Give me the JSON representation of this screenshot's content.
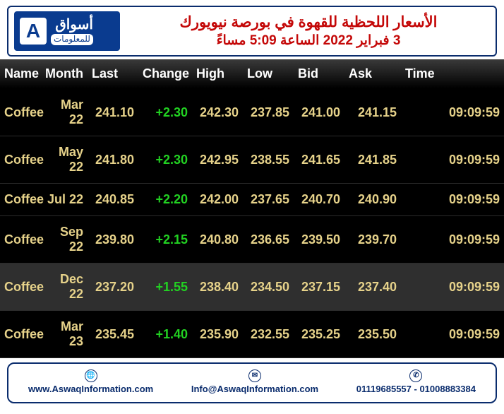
{
  "header": {
    "logo_letter": "A",
    "logo_top": "أسواق",
    "logo_bottom": "للمعلومات",
    "title_line1": "الأسعار اللحظية للقهوة في بورصة نيويورك",
    "title_line2": "3 فبراير 2022 الساعة 5:09 مساءً"
  },
  "table": {
    "headers": [
      "Name",
      "Month",
      "Last",
      "Change",
      "High",
      "Low",
      "Bid",
      "Ask",
      "Time"
    ],
    "rows": [
      {
        "name": "Coffee",
        "month": "Mar 22",
        "last": "241.10",
        "change": "+2.30",
        "high": "242.30",
        "low": "237.85",
        "bid": "241.00",
        "ask": "241.15",
        "time": "09:09:59",
        "alt": false
      },
      {
        "name": "Coffee",
        "month": "May 22",
        "last": "241.80",
        "change": "+2.30",
        "high": "242.95",
        "low": "238.55",
        "bid": "241.65",
        "ask": "241.85",
        "time": "09:09:59",
        "alt": false
      },
      {
        "name": "Coffee",
        "month": "Jul 22",
        "last": "240.85",
        "change": "+2.20",
        "high": "242.00",
        "low": "237.65",
        "bid": "240.70",
        "ask": "240.90",
        "time": "09:09:59",
        "alt": false
      },
      {
        "name": "Coffee",
        "month": "Sep 22",
        "last": "239.80",
        "change": "+2.15",
        "high": "240.80",
        "low": "236.65",
        "bid": "239.50",
        "ask": "239.70",
        "time": "09:09:59",
        "alt": false
      },
      {
        "name": "Coffee",
        "month": "Dec 22",
        "last": "237.20",
        "change": "+1.55",
        "high": "238.40",
        "low": "234.50",
        "bid": "237.15",
        "ask": "237.40",
        "time": "09:09:59",
        "alt": true
      },
      {
        "name": "Coffee",
        "month": "Mar 23",
        "last": "235.45",
        "change": "+1.40",
        "high": "235.90",
        "low": "232.55",
        "bid": "235.25",
        "ask": "235.50",
        "time": "09:09:59",
        "alt": false
      }
    ]
  },
  "footer": {
    "website": "www.AswaqInformation.com",
    "email": "Info@AswaqInformation.com",
    "phones": "01119685557 - 01008883384"
  },
  "colors": {
    "header_border": "#0a2c6d",
    "logo_bg": "#0a3b8f",
    "title_color": "#c40808",
    "cell_text": "#e6d28a",
    "positive": "#22d122",
    "row_bg": "#000000",
    "row_alt_bg": "#2f2f2f",
    "th_bg_top": "#3a3a3a",
    "th_bg_bot": "#000000"
  }
}
